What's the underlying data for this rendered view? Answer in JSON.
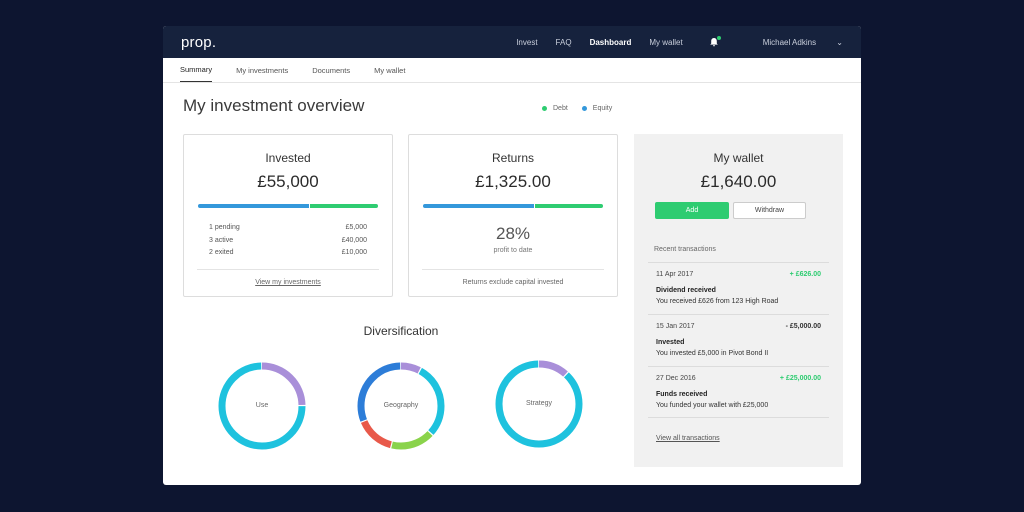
{
  "brand": "prop.",
  "nav": {
    "links": [
      "Invest",
      "FAQ",
      "Dashboard",
      "My wallet"
    ],
    "active": "Dashboard",
    "user": "Michael Adkins",
    "chevron": "⌄"
  },
  "tabs": [
    "Summary",
    "My investments",
    "Documents",
    "My wallet"
  ],
  "page_title": "My investment overview",
  "legend": [
    {
      "label": "Debt",
      "color": "#2ecc71"
    },
    {
      "label": "Equity",
      "color": "#3498db"
    }
  ],
  "invested": {
    "title": "Invested",
    "value": "£55,000",
    "bar": {
      "equity_fraction": 0.62,
      "debt_fraction": 0.38
    },
    "rows": [
      {
        "label": "1 pending",
        "amount": "£5,000"
      },
      {
        "label": "3 active",
        "amount": "£40,000"
      },
      {
        "label": "2 exited",
        "amount": "£10,000"
      }
    ],
    "link": "View my investments"
  },
  "returns": {
    "title": "Returns",
    "value": "£1,325.00",
    "bar": {
      "equity_fraction": 0.62,
      "debt_fraction": 0.38
    },
    "percent": "28%",
    "percent_label": "profit to date",
    "note": "Returns exclude capital invested"
  },
  "diversification": {
    "title": "Diversification",
    "charts": [
      {
        "label": "Use",
        "segments": [
          {
            "fraction": 0.25,
            "color": "#a98fd9"
          },
          {
            "fraction": 0.75,
            "color": "#1ec2de"
          }
        ]
      },
      {
        "label": "Geography",
        "segments": [
          {
            "fraction": 0.08,
            "color": "#a98fd9"
          },
          {
            "fraction": 0.29,
            "color": "#1ec2de"
          },
          {
            "fraction": 0.17,
            "color": "#8ad34b"
          },
          {
            "fraction": 0.15,
            "color": "#e8594a"
          },
          {
            "fraction": 0.31,
            "color": "#2d7dd8"
          }
        ]
      },
      {
        "label": "Strategy",
        "segments": [
          {
            "fraction": 0.12,
            "color": "#a98fd9"
          },
          {
            "fraction": 0.88,
            "color": "#1ec2de"
          }
        ]
      }
    ]
  },
  "wallet": {
    "title": "My wallet",
    "balance": "£1,640.00",
    "add_label": "Add",
    "withdraw_label": "Withdraw",
    "recent_label": "Recent transactions",
    "transactions": [
      {
        "date": "11 Apr 2017",
        "amount": "+ £626.00",
        "type": "pos",
        "title": "Dividend received",
        "desc": "You received £626 from 123 High Road"
      },
      {
        "date": "15 Jan 2017",
        "amount": "- £5,000.00",
        "type": "neg",
        "title": "Invested",
        "desc": "You invested £5,000 in Pivot Bond II"
      },
      {
        "date": "27 Dec 2016",
        "amount": "+ £25,000.00",
        "type": "pos",
        "title": "Funds received",
        "desc": "You funded your wallet with £25,000"
      }
    ],
    "view_all": "View all transactions"
  }
}
